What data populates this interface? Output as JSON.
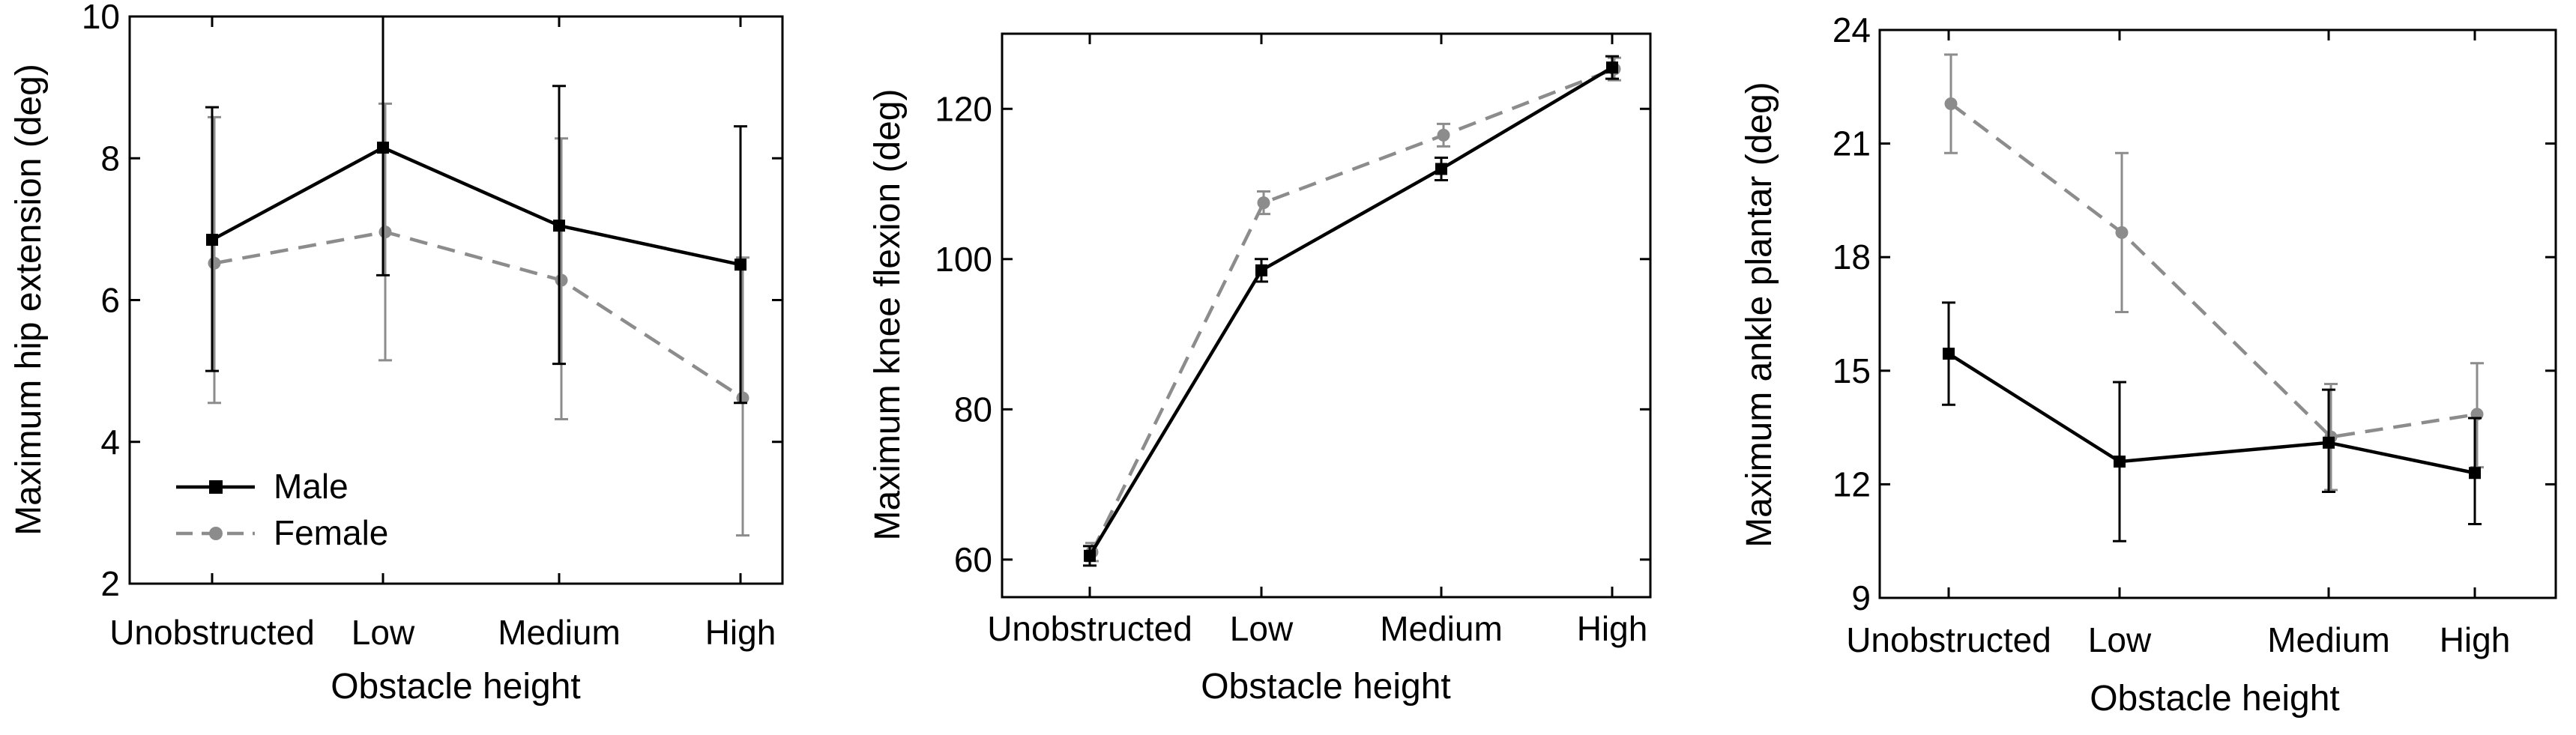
{
  "figure": {
    "description_visible": false
  },
  "chart_data": [
    {
      "type": "line",
      "title": "",
      "xlabel": "Obstacle height",
      "ylabel": "Maximum hip extension (deg)",
      "categories": [
        "Unobstructed",
        "Low",
        "Medium",
        "High"
      ],
      "ylim": [
        2,
        10
      ],
      "yticks": [
        2,
        4,
        6,
        8,
        10
      ],
      "legend": {
        "position": "bottom-left"
      },
      "series": [
        {
          "name": "Male",
          "color": "#000000",
          "dash": "solid",
          "marker": "square",
          "values": [
            6.85,
            8.15,
            7.05,
            6.5
          ],
          "err_low": [
            5.0,
            6.35,
            5.1,
            4.55
          ],
          "err_high": [
            8.72,
            10.0,
            9.02,
            8.45
          ]
        },
        {
          "name": "Female",
          "color": "#8c8c8c",
          "dash": "dashed",
          "marker": "circle",
          "values": [
            6.52,
            6.96,
            6.28,
            4.62
          ],
          "err_low": [
            4.55,
            5.15,
            4.32,
            2.68
          ],
          "err_high": [
            8.58,
            8.77,
            8.28,
            6.6
          ]
        }
      ]
    },
    {
      "type": "line",
      "title": "",
      "xlabel": "Obstacle height",
      "ylabel": "Maximum knee flexion (deg)",
      "categories": [
        "Unobstructed",
        "Low",
        "Medium",
        "High"
      ],
      "ylim": [
        55,
        130
      ],
      "yticks": [
        60,
        80,
        100,
        120
      ],
      "legend": {
        "position": "none"
      },
      "series": [
        {
          "name": "Male",
          "color": "#000000",
          "dash": "solid",
          "marker": "square",
          "values": [
            60.5,
            98.5,
            112.0,
            125.5
          ],
          "err_low": [
            59.2,
            97.0,
            110.5,
            124.0
          ],
          "err_high": [
            61.8,
            100.0,
            113.5,
            127.0
          ]
        },
        {
          "name": "Female",
          "color": "#8c8c8c",
          "dash": "dashed",
          "marker": "circle",
          "values": [
            61.0,
            107.5,
            116.5,
            125.3
          ],
          "err_low": [
            59.8,
            106.0,
            115.0,
            123.8
          ],
          "err_high": [
            62.2,
            109.0,
            118.0,
            126.8
          ]
        }
      ]
    },
    {
      "type": "line",
      "title": "",
      "xlabel": "Obstacle height",
      "ylabel": "Maximum ankle plantar (deg)",
      "categories": [
        "Unobstructed",
        "Low",
        "Medium",
        "High"
      ],
      "ylim": [
        9,
        24
      ],
      "yticks": [
        9,
        12,
        15,
        18,
        21,
        24
      ],
      "legend": {
        "position": "none"
      },
      "series": [
        {
          "name": "Male",
          "color": "#000000",
          "dash": "solid",
          "marker": "square",
          "values": [
            15.45,
            12.6,
            13.1,
            12.3
          ],
          "err_low": [
            14.1,
            10.5,
            11.8,
            10.95
          ],
          "err_high": [
            16.8,
            14.7,
            14.5,
            13.75
          ]
        },
        {
          "name": "Female",
          "color": "#8c8c8c",
          "dash": "dashed",
          "marker": "circle",
          "values": [
            22.05,
            18.65,
            13.25,
            13.85
          ],
          "err_low": [
            20.75,
            16.55,
            11.85,
            12.45
          ],
          "err_high": [
            23.35,
            20.75,
            14.65,
            15.2
          ]
        }
      ]
    }
  ]
}
